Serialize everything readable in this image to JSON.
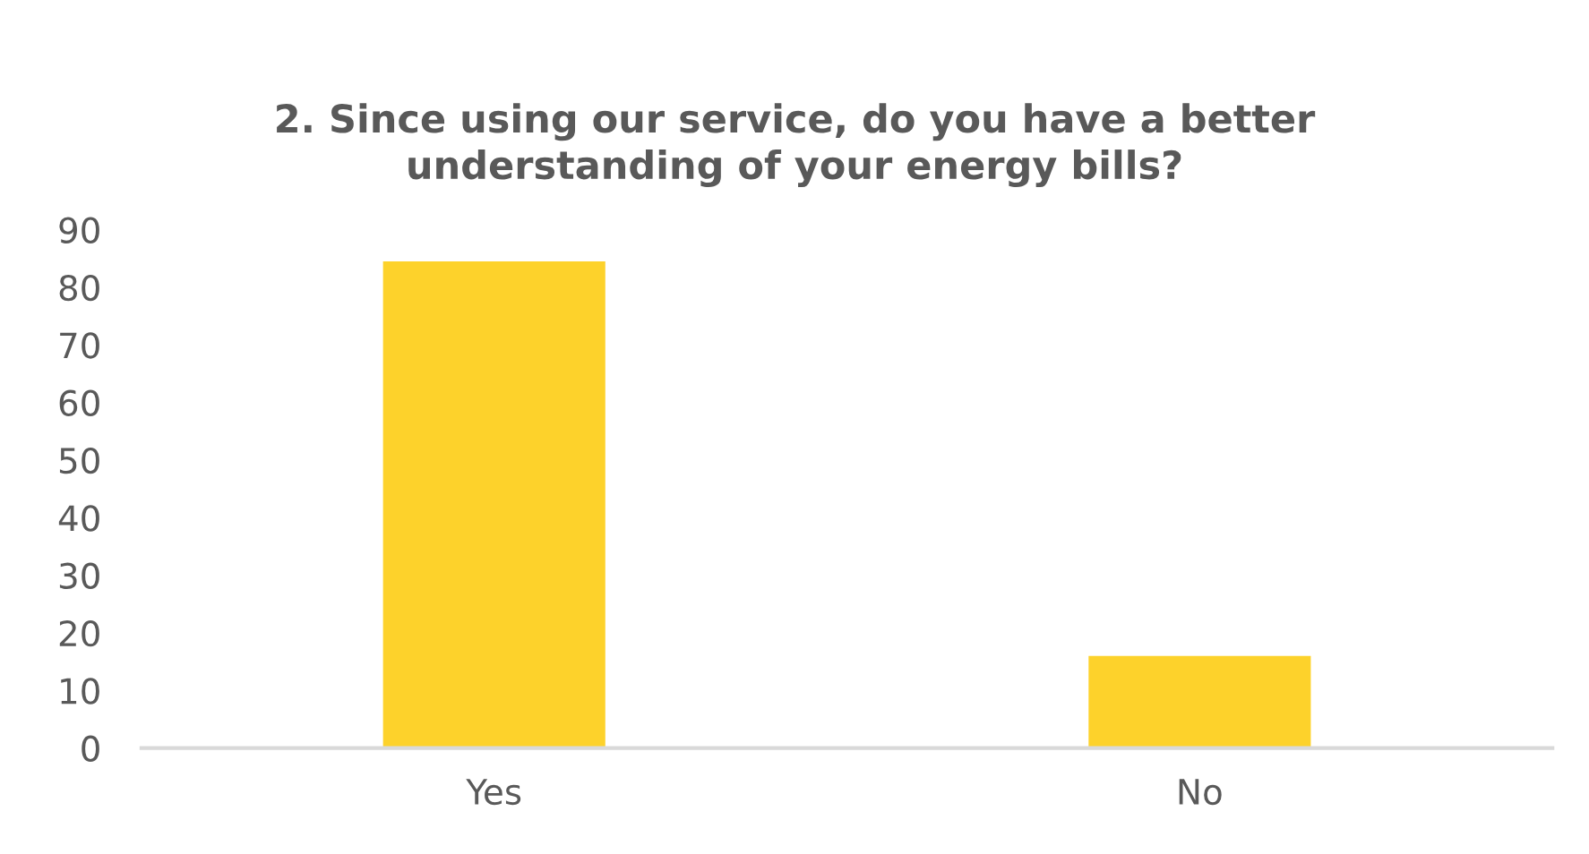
{
  "chart_data": {
    "type": "bar",
    "title": "2. Since using our service, do you have a better\nunderstanding of your energy bills?",
    "categories": [
      "Yes",
      "No"
    ],
    "values": [
      84.5,
      16
    ],
    "color": "#fdd22b",
    "ylim": [
      0,
      90
    ],
    "yticks": [
      0,
      10,
      20,
      30,
      40,
      50,
      60,
      70,
      80,
      90
    ],
    "grid": false
  }
}
